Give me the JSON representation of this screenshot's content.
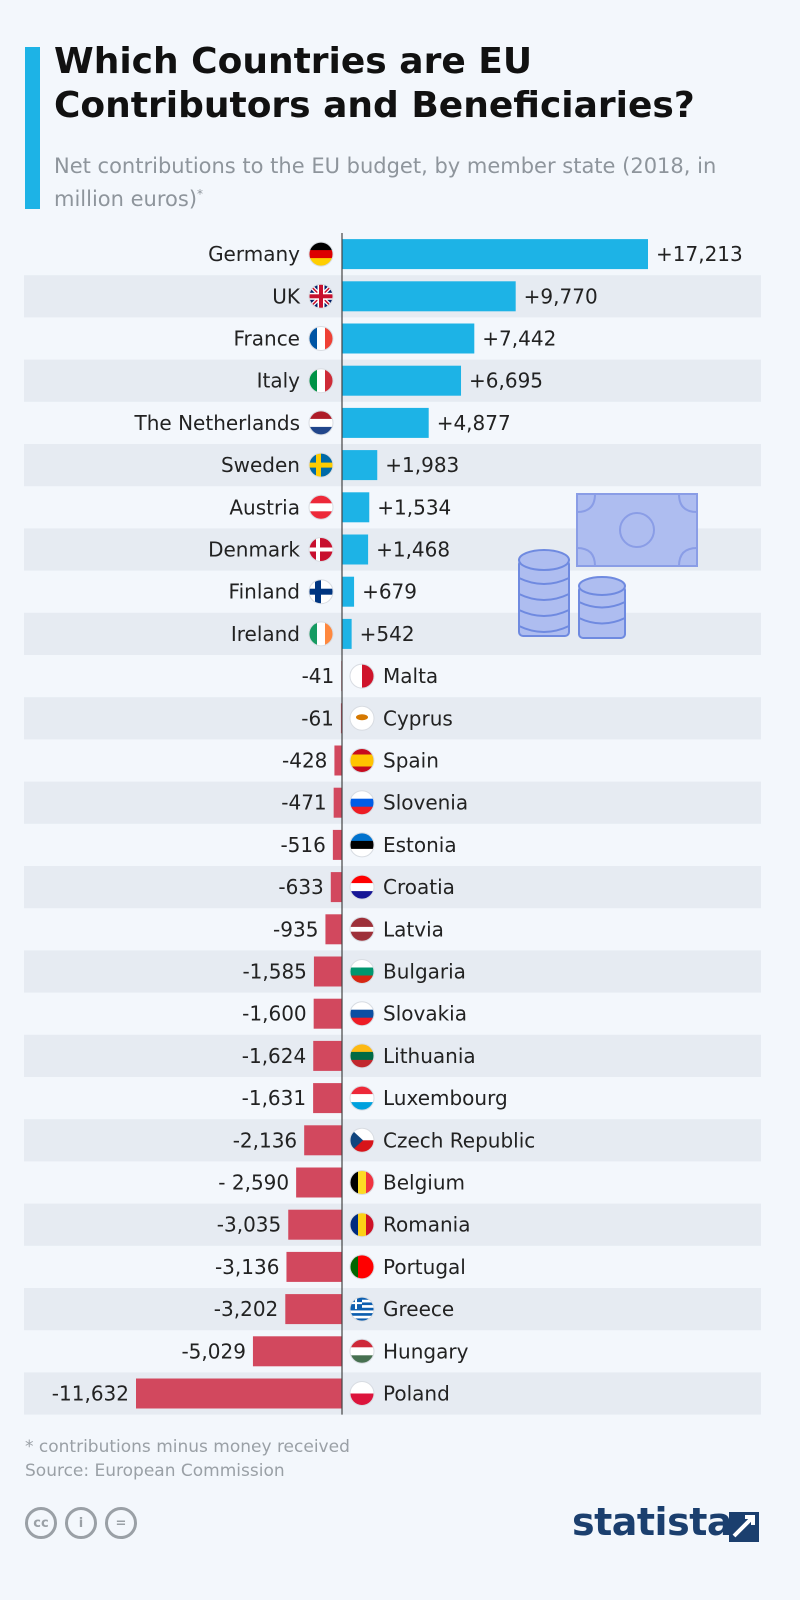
{
  "header": {
    "title": "Which Countries are EU Contributors and Beneficiaries?",
    "subtitle": "Net contributions to the EU budget, by member state (2018, in million euros)",
    "subtitle_mark": "*"
  },
  "footer": {
    "footnote": "* contributions minus money received",
    "source": "Source: European Commission",
    "brand": "statista",
    "license_icons": [
      "cc-icon",
      "attribution-icon",
      "no-derivatives-icon"
    ],
    "license_cc": "cc",
    "license_attribution": "i",
    "license_nd": "="
  },
  "colors": {
    "positive": "#1db3e6",
    "negative": "#d2485e",
    "accent": "#1db3e6",
    "brand": "#1b3f6e"
  },
  "chart_data": {
    "type": "bar",
    "orientation": "horizontal",
    "title": "Which Countries are EU Contributors and Beneficiaries?",
    "subtitle": "Net contributions to the EU budget, by member state (2018, in million euros)",
    "categories": [
      "Germany",
      "UK",
      "France",
      "Italy",
      "The Netherlands",
      "Sweden",
      "Austria",
      "Denmark",
      "Finland",
      "Ireland",
      "Malta",
      "Cyprus",
      "Spain",
      "Slovenia",
      "Estonia",
      "Croatia",
      "Latvia",
      "Bulgaria",
      "Slovakia",
      "Lithuania",
      "Luxembourg",
      "Czech Republic",
      "Belgium",
      "Romania",
      "Portugal",
      "Greece",
      "Hungary",
      "Poland"
    ],
    "values": [
      17213,
      9770,
      7442,
      6695,
      4877,
      1983,
      1534,
      1468,
      679,
      542,
      -41,
      -61,
      -428,
      -471,
      -516,
      -633,
      -935,
      -1585,
      -1600,
      -1624,
      -1631,
      -2136,
      -2590,
      -3035,
      -3136,
      -3202,
      -5029,
      -11632
    ],
    "labels": [
      "+17,213",
      "+9,770",
      "+7,442",
      "+6,695",
      "+4,877",
      "+1,983",
      "+1,534",
      "+1,468",
      "+679",
      "+542",
      "-41",
      "-61",
      "-428",
      "-471",
      "-516",
      "-633",
      "-935",
      "-1,585",
      "-1,600",
      "-1,624",
      "-1,631",
      "-2,136",
      "- 2,590",
      "-3,035",
      "-3,136",
      "-3,202",
      "-5,029",
      "-11,632"
    ],
    "flag_icons": [
      "germany-flag-icon",
      "uk-flag-icon",
      "france-flag-icon",
      "italy-flag-icon",
      "netherlands-flag-icon",
      "sweden-flag-icon",
      "austria-flag-icon",
      "denmark-flag-icon",
      "finland-flag-icon",
      "ireland-flag-icon",
      "malta-flag-icon",
      "cyprus-flag-icon",
      "spain-flag-icon",
      "slovenia-flag-icon",
      "estonia-flag-icon",
      "croatia-flag-icon",
      "latvia-flag-icon",
      "bulgaria-flag-icon",
      "slovakia-flag-icon",
      "lithuania-flag-icon",
      "luxembourg-flag-icon",
      "czech-republic-flag-icon",
      "belgium-flag-icon",
      "romania-flag-icon",
      "portugal-flag-icon",
      "greece-flag-icon",
      "hungary-flag-icon",
      "poland-flag-icon"
    ],
    "xlim": [
      -12500,
      17800
    ],
    "grid": false,
    "legend": "none"
  }
}
